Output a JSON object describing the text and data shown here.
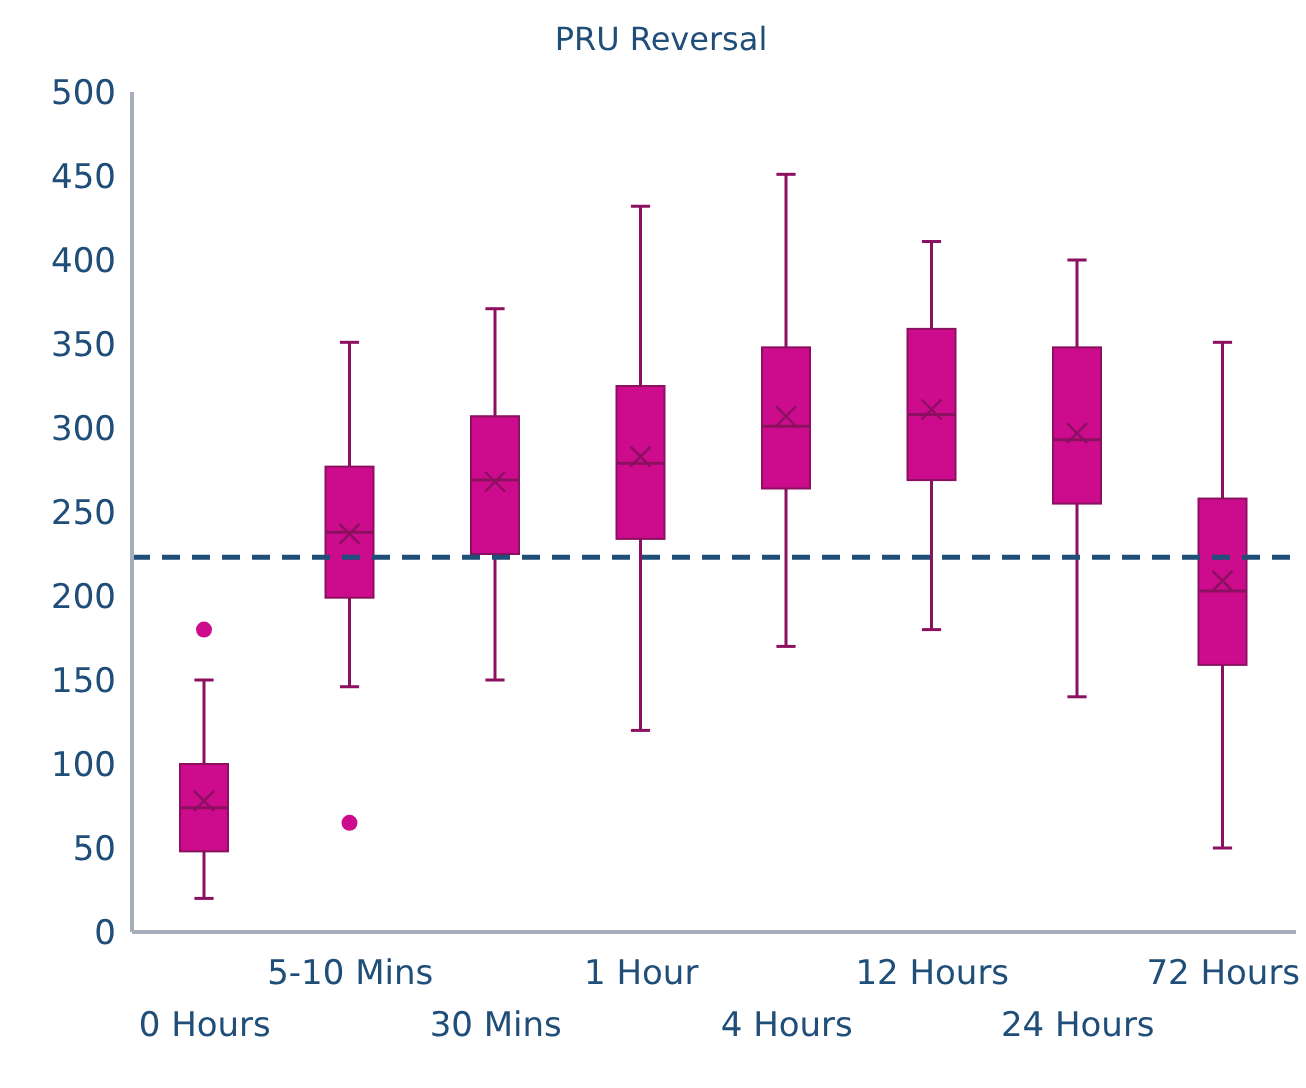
{
  "chart_data": {
    "type": "box",
    "title": "PRU Reversal",
    "categories": [
      "0 Hours",
      "5-10 Mins",
      "30 Mins",
      "1 Hour",
      "4 Hours",
      "12 Hours",
      "24 Hours",
      "72 Hours"
    ],
    "boxes": [
      {
        "low": 20,
        "q1": 48,
        "median": 74,
        "q3": 100,
        "high": 150,
        "mean": 78,
        "outliers": [
          180
        ]
      },
      {
        "low": 146,
        "q1": 199,
        "median": 238,
        "q3": 277,
        "high": 351,
        "mean": 237,
        "outliers": [
          65
        ]
      },
      {
        "low": 150,
        "q1": 225,
        "median": 269,
        "q3": 307,
        "high": 371,
        "mean": 268
      },
      {
        "low": 120,
        "q1": 234,
        "median": 279,
        "q3": 325,
        "high": 432,
        "mean": 283
      },
      {
        "low": 170,
        "q1": 264,
        "median": 301,
        "q3": 348,
        "high": 451,
        "mean": 307
      },
      {
        "low": 180,
        "q1": 269,
        "median": 308,
        "q3": 359,
        "high": 411,
        "mean": 311
      },
      {
        "low": 140,
        "q1": 255,
        "median": 293,
        "q3": 348,
        "high": 400,
        "mean": 297
      },
      {
        "low": 50,
        "q1": 159,
        "median": 203,
        "q3": 258,
        "high": 351,
        "mean": 209
      }
    ],
    "color": "#cc0c8c",
    "ylim": [
      0,
      500
    ],
    "yticks": [
      0,
      50,
      100,
      150,
      200,
      250,
      300,
      350,
      400,
      450,
      500
    ],
    "ref_lines": [
      {
        "axis": "y",
        "value": 223,
        "color": "#1f4e79",
        "line_style": "dashed"
      }
    ]
  }
}
